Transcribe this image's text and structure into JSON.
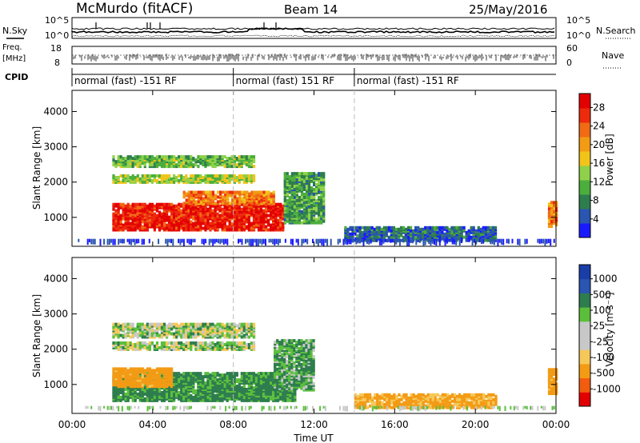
{
  "header": {
    "station": "McMurdo (fitACF)",
    "beam": "Beam 14",
    "date": "25/May/2016"
  },
  "left_labels": {
    "nsky": "N.Sky",
    "freq": "Freq.",
    "freq_unit": "[MHz]",
    "cpid": "CPID"
  },
  "right_labels": {
    "nsearch": "N.Search",
    "nave": "Nave"
  },
  "noise_axis": {
    "left_top": "10^5",
    "left_bottom": "10^0",
    "right_top": "10^5",
    "right_bottom": "10^0"
  },
  "freq_axis": {
    "top": "18",
    "bottom": "8"
  },
  "nave_axis": {
    "top": "60",
    "bottom": "0"
  },
  "cpid_segments": [
    {
      "label": "normal (fast) -151 RF",
      "start_hour": 0
    },
    {
      "label": "normal (fast) 151 RF",
      "start_hour": 8
    },
    {
      "label": "normal (fast) -151 RF",
      "start_hour": 14
    }
  ],
  "colors": {
    "power": [
      "#1a1aff",
      "#2a55b0",
      "#2e7d4e",
      "#4cae3c",
      "#8fd14a",
      "#f2c41a",
      "#f39b15",
      "#f06b14",
      "#ee2a0d",
      "#e30000"
    ],
    "velocity": [
      "#e30000",
      "#f25c10",
      "#f39b15",
      "#f6c85a",
      "#c8c8c8",
      "#c8c8c8",
      "#5bbf3c",
      "#2e7d4e",
      "#2a55b0",
      "#1a3ea8"
    ],
    "accent_dash": "#bbbbbb"
  },
  "chart_data": [
    {
      "type": "heatmap",
      "panel": "power",
      "xlabel": "",
      "ylabel": "Slant Range [km]",
      "xlim": [
        0,
        24
      ],
      "ylim": [
        180,
        4600
      ],
      "yticks": [
        "1000",
        "2000",
        "3000",
        "4000"
      ],
      "colorbar": {
        "label": "Power [dB]",
        "ticks": [
          "4",
          "8",
          "12",
          "16",
          "20",
          "24",
          "28"
        ],
        "range": [
          0,
          31
        ]
      },
      "regions": [
        {
          "x": [
            2.0,
            10.5
          ],
          "y": [
            600,
            1350
          ],
          "value": 28
        },
        {
          "x": [
            5.5,
            10.0
          ],
          "y": [
            1350,
            1700
          ],
          "value": 22
        },
        {
          "x": [
            2.0,
            9.0
          ],
          "y": [
            1950,
            2150
          ],
          "value": 14
        },
        {
          "x": [
            2.0,
            9.0
          ],
          "y": [
            2400,
            2700
          ],
          "value": 12
        },
        {
          "x": [
            10.5,
            12.5
          ],
          "y": [
            800,
            2200
          ],
          "value": 10
        },
        {
          "x": [
            13.5,
            21.0
          ],
          "y": [
            300,
            700
          ],
          "value": 6
        },
        {
          "x": [
            23.6,
            24.0
          ],
          "y": [
            700,
            1400
          ],
          "value": 22
        }
      ]
    },
    {
      "type": "heatmap",
      "panel": "velocity",
      "xlabel": "Time UT",
      "ylabel": "Slant Range [km]",
      "xlim": [
        0,
        24
      ],
      "ylim": [
        180,
        4600
      ],
      "xticks": [
        "00:00",
        "04:00",
        "08:00",
        "12:00",
        "16:00",
        "20:00",
        "00:00"
      ],
      "yticks": [
        "1000",
        "2000",
        "3000",
        "4000"
      ],
      "colorbar": {
        "label": "Velocity [m s⁻¹]",
        "ticks": [
          "-1000",
          "-500",
          "-100",
          "-25",
          "25",
          "100",
          "500",
          "1000"
        ]
      },
      "regions": [
        {
          "x": [
            2.0,
            11.0
          ],
          "y": [
            500,
            1300
          ],
          "value": 150
        },
        {
          "x": [
            2.0,
            5.0
          ],
          "y": [
            900,
            1400
          ],
          "value": -200
        },
        {
          "x": [
            2.0,
            9.0
          ],
          "y": [
            2300,
            2700
          ],
          "value": 20
        },
        {
          "x": [
            2.0,
            9.0
          ],
          "y": [
            1950,
            2150
          ],
          "value": 20
        },
        {
          "x": [
            10.0,
            12.0
          ],
          "y": [
            800,
            2200
          ],
          "value": 100
        },
        {
          "x": [
            14.0,
            21.0
          ],
          "y": [
            300,
            700
          ],
          "value": -150
        },
        {
          "x": [
            23.6,
            24.0
          ],
          "y": [
            700,
            1400
          ],
          "value": -200
        }
      ]
    }
  ]
}
